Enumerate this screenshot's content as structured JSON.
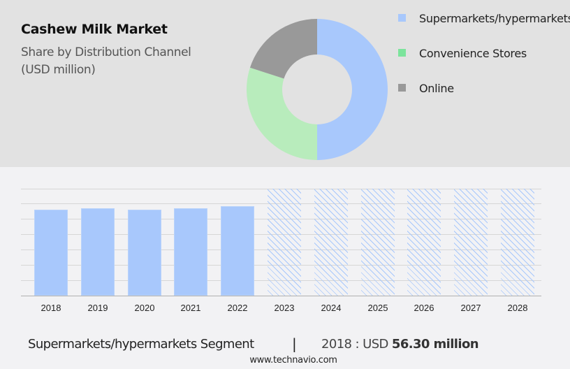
{
  "header": {
    "title": "Cashew Milk Market",
    "subtitle_line1": "Share by Distribution Channel",
    "subtitle_line2": "(USD million)"
  },
  "colors": {
    "supermarkets": "#a8c8fc",
    "convenience": "#b8ecbc",
    "convenience_legend": "#7ce49c",
    "online": "#999999",
    "top_bg": "#e2e2e2",
    "bottom_bg": "#f2f2f4"
  },
  "legend": [
    {
      "label": "Supermarkets/hypermarkets",
      "color": "#a8c8fc"
    },
    {
      "label": "Convenience Stores",
      "color": "#7ce49c"
    },
    {
      "label": "Online",
      "color": "#999999"
    }
  ],
  "footer": {
    "segment": "Supermarkets/hypermarkets Segment",
    "separator": "|",
    "year_prefix": "2018 : USD ",
    "value": "56.30 million",
    "website": "www.technavio.com"
  },
  "chart_data": [
    {
      "type": "pie",
      "title": "Cashew Milk Market - Share by Distribution Channel (USD million)",
      "categories": [
        "Supermarkets/hypermarkets",
        "Convenience Stores",
        "Online"
      ],
      "values": [
        50,
        30,
        20
      ],
      "donut": true,
      "legend_position": "right"
    },
    {
      "type": "bar",
      "title": "Supermarkets/hypermarkets Segment",
      "categories": [
        "2018",
        "2019",
        "2020",
        "2021",
        "2022",
        "2023",
        "2024",
        "2025",
        "2026",
        "2027",
        "2028"
      ],
      "values": [
        56.3,
        57.2,
        56.3,
        57.2,
        58.6,
        null,
        null,
        null,
        null,
        null,
        null
      ],
      "forecast_categories": [
        "2023",
        "2024",
        "2025",
        "2026",
        "2027",
        "2028"
      ],
      "xlabel": "",
      "ylabel": "",
      "grid": true,
      "annotation": "2018 : USD 56.30 million"
    }
  ]
}
